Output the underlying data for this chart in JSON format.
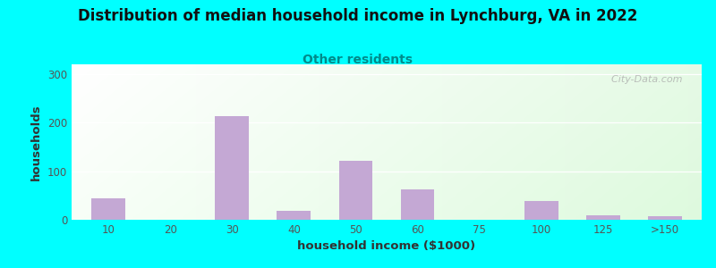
{
  "title": "Distribution of median household income in Lynchburg, VA in 2022",
  "subtitle": "Other residents",
  "xlabel": "household income ($1000)",
  "ylabel": "households",
  "background_color": "#00FFFF",
  "bar_color": "#C4A8D4",
  "title_fontsize": 12,
  "subtitle_fontsize": 10,
  "subtitle_color": "#008B8B",
  "axis_label_fontsize": 9.5,
  "tick_label_color": "#555555",
  "categories": [
    "10",
    "20",
    "30",
    "40",
    "50",
    "60",
    "75",
    "100",
    "125",
    ">150"
  ],
  "values": [
    45,
    0,
    213,
    18,
    122,
    63,
    0,
    38,
    10,
    8
  ],
  "yticks": [
    0,
    100,
    200,
    300
  ],
  "ylim": [
    0,
    320
  ],
  "watermark": "  City-Data.com"
}
